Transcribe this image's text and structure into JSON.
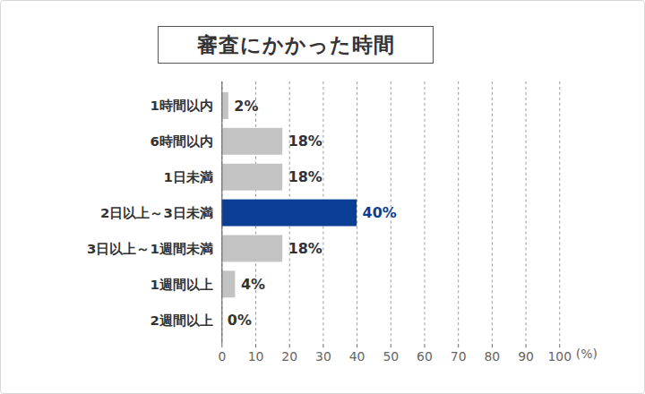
{
  "chart_data": {
    "type": "bar",
    "title": "審査にかかった時間",
    "orientation": "horizontal",
    "categories": [
      "1時間以内",
      "6時間以内",
      "1日未満",
      "2日以上～3日未満",
      "3日以上～1週間未満",
      "1週間以上",
      "2週間以上"
    ],
    "values": [
      2,
      18,
      18,
      40,
      18,
      4,
      0
    ],
    "value_labels": [
      "2%",
      "18%",
      "18%",
      "40%",
      "18%",
      "4%",
      "0%"
    ],
    "colors": [
      "#c3c3c3",
      "#c3c3c3",
      "#c3c3c3",
      "#0b3f95",
      "#c3c3c3",
      "#c3c3c3",
      "#c3c3c3"
    ],
    "xlabel": "(%)",
    "xlim": [
      0,
      100
    ],
    "xticks": [
      0,
      10,
      20,
      30,
      40,
      50,
      60,
      70,
      80,
      90,
      100
    ],
    "grid": true,
    "data_labels": true
  }
}
